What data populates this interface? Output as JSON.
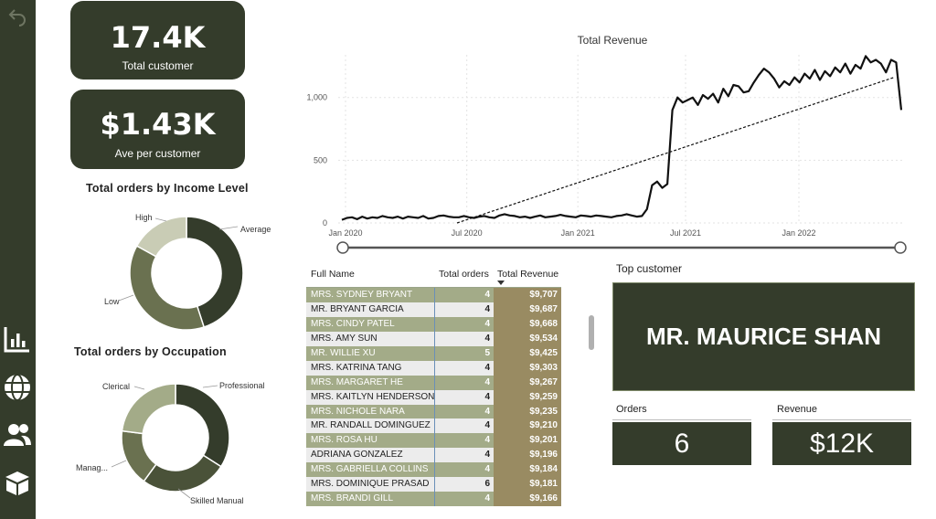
{
  "kpis": {
    "total_customer": {
      "value": "17.4K",
      "label": "Total customer"
    },
    "ave_per_customer": {
      "value": "$1.43K",
      "label": "Ave per customer"
    }
  },
  "income_chart": {
    "title": "Total orders by Income Level",
    "labels": {
      "high": "High",
      "average": "Average",
      "low": "Low"
    }
  },
  "occupation_chart": {
    "title": "Total orders by Occupation",
    "labels": {
      "clerical": "Clerical",
      "professional": "Professional",
      "management": "Manag...",
      "skilled_manual": "Skilled Manual"
    }
  },
  "chart_data": [
    {
      "type": "pie",
      "title": "Total orders by Income Level",
      "categories": [
        "Average",
        "Low",
        "High"
      ],
      "values": [
        45,
        38,
        17
      ]
    },
    {
      "type": "pie",
      "title": "Total orders by Occupation",
      "categories": [
        "Professional",
        "Skilled Manual",
        "Manag...",
        "Clerical"
      ],
      "values": [
        34,
        26,
        17,
        23
      ]
    },
    {
      "type": "line",
      "title": "Total Revenue",
      "x_tick_labels": [
        "Jan 2020",
        "Jul 2020",
        "Jan 2021",
        "Jul 2021",
        "Jan 2022"
      ],
      "y_tick_labels": [
        "0",
        "500",
        "1,000"
      ],
      "ylim": [
        0,
        1300
      ],
      "grid": true,
      "series": [
        {
          "values": [
            25,
            40,
            45,
            30,
            50,
            35,
            45,
            40,
            55,
            45,
            40,
            50,
            35,
            50,
            45,
            40,
            55,
            35,
            40,
            55,
            60,
            50,
            45,
            45,
            55,
            45,
            40,
            50,
            55,
            45,
            40,
            60,
            70,
            60,
            55,
            45,
            50,
            40,
            50,
            60,
            45,
            50,
            55,
            65,
            55,
            50,
            45,
            60,
            55,
            50,
            60,
            55,
            50,
            45,
            55,
            60,
            70,
            60,
            50,
            55,
            110,
            300,
            330,
            280,
            310,
            900,
            1000,
            960,
            980,
            1000,
            940,
            1020,
            990,
            1030,
            960,
            1070,
            1010,
            1100,
            1090,
            1040,
            1050,
            1120,
            1180,
            1230,
            1200,
            1150,
            1080,
            1130,
            1100,
            1160,
            1120,
            1190,
            1150,
            1220,
            1140,
            1210,
            1170,
            1240,
            1200,
            1270,
            1190,
            1260,
            1230,
            1330,
            1280,
            1300,
            1270,
            1200,
            1300,
            1280,
            900
          ]
        }
      ],
      "trendline": [
        [
          0,
          0
        ],
        [
          1,
          1160
        ]
      ]
    }
  ],
  "table": {
    "headers": {
      "name": "Full Name",
      "orders": "Total orders",
      "revenue": "Total Revenue"
    },
    "rows": [
      {
        "name": "MRS. SYDNEY BRYANT",
        "orders": "4",
        "revenue": "$9,707"
      },
      {
        "name": "MR. BRYANT GARCIA",
        "orders": "4",
        "revenue": "$9,687"
      },
      {
        "name": "MRS. CINDY PATEL",
        "orders": "4",
        "revenue": "$9,668"
      },
      {
        "name": "MRS. AMY SUN",
        "orders": "4",
        "revenue": "$9,534"
      },
      {
        "name": "MR. WILLIE XU",
        "orders": "5",
        "revenue": "$9,425"
      },
      {
        "name": "MRS. KATRINA TANG",
        "orders": "4",
        "revenue": "$9,303"
      },
      {
        "name": "MRS. MARGARET HE",
        "orders": "4",
        "revenue": "$9,267"
      },
      {
        "name": "MRS. KAITLYN HENDERSON",
        "orders": "4",
        "revenue": "$9,259"
      },
      {
        "name": "MRS. NICHOLE NARA",
        "orders": "4",
        "revenue": "$9,235"
      },
      {
        "name": "MR. RANDALL DOMINGUEZ",
        "orders": "4",
        "revenue": "$9,210"
      },
      {
        "name": "MRS. ROSA HU",
        "orders": "4",
        "revenue": "$9,201"
      },
      {
        "name": "ADRIANA GONZALEZ",
        "orders": "4",
        "revenue": "$9,196"
      },
      {
        "name": "MRS. GABRIELLA COLLINS",
        "orders": "4",
        "revenue": "$9,184"
      },
      {
        "name": "MRS. DOMINIQUE PRASAD",
        "orders": "6",
        "revenue": "$9,181"
      },
      {
        "name": "MRS. BRANDI GILL",
        "orders": "4",
        "revenue": "$9,166"
      }
    ]
  },
  "top_customer": {
    "title": "Top customer",
    "name": "MR. MAURICE SHAN",
    "orders_label": "Orders",
    "orders_value": "6",
    "revenue_label": "Revenue",
    "revenue_value": "$12K"
  },
  "sidebar": {
    "icons": [
      "back-arrow-icon",
      "bar-chart-icon",
      "globe-icon",
      "users-icon",
      "package-icon"
    ]
  },
  "colors": {
    "dark": "#343c2b",
    "olive": "#6a7150",
    "light_olive": "#a3ab88",
    "pale": "#c9ccb5",
    "revenue_col": "#998b62"
  }
}
